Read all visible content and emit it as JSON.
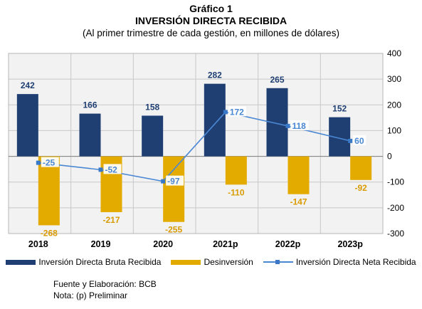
{
  "header": {
    "title_line1": "Gráfico 1",
    "title_line2": "INVERSIÓN DIRECTA RECIBIDA",
    "subtitle": "(Al primer trimestre de cada gestión, en millones de dólares)"
  },
  "chart_data": {
    "type": "bar",
    "title": "INVERSIÓN DIRECTA RECIBIDA",
    "subtitle": "(Al primer trimestre de cada gestión, en millones de dólares)",
    "categories": [
      "2018",
      "2019",
      "2020",
      "2021p",
      "2022p",
      "2023p"
    ],
    "series": [
      {
        "name": "Inversión Directa Bruta Recibida",
        "type": "bar",
        "values": [
          242,
          166,
          158,
          282,
          265,
          152
        ]
      },
      {
        "name": "Desinversión",
        "type": "bar",
        "values": [
          -268,
          -217,
          -255,
          -110,
          -147,
          -92
        ]
      },
      {
        "name": "Inversión Directa Neta Recibida",
        "type": "line",
        "values": [
          -25,
          -52,
          -97,
          172,
          118,
          60
        ]
      }
    ],
    "ylim": [
      -300,
      400
    ],
    "yticks": [
      "400",
      "300",
      "200",
      "100",
      "0",
      "-100",
      "-200",
      "-300"
    ],
    "ytick_values": [
      400,
      300,
      200,
      100,
      0,
      -100,
      -200,
      -300
    ],
    "xlabel": "",
    "ylabel": "",
    "grid": true,
    "legend_position": "bottom"
  },
  "colors": {
    "bruta": "#1f3f73",
    "desinversion": "#e3ab00",
    "neta": "#4a87d3",
    "bruta_label": "#1f3f73",
    "desinversion_label": "#d99a00",
    "neta_label": "#4a87d3",
    "grid": "#c8c8c8",
    "plot_bg": "#f2f2f2"
  },
  "footer": {
    "source": "Fuente y Elaboración: BCB",
    "note": "Nota: (p) Preliminar"
  }
}
